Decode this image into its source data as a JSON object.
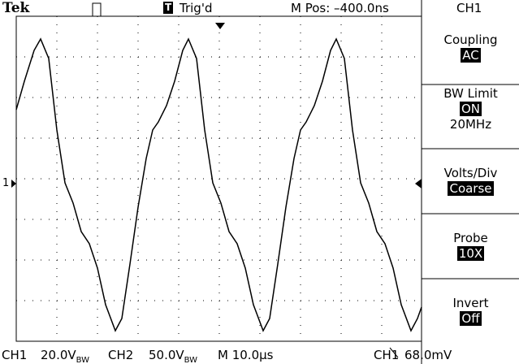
{
  "header": {
    "logo": "Tek",
    "trigger_icon": "T",
    "trigger_status": "Trig'd",
    "position": "M Pos: –400.0ns",
    "channel": "CH1"
  },
  "channel_marker": "1",
  "menu": [
    {
      "label": "Coupling",
      "value": "AC"
    },
    {
      "label": "BW Limit",
      "value": "ON",
      "extra": "20MHz"
    },
    {
      "label": "Volts/Div",
      "value": "Coarse"
    },
    {
      "label": "Probe",
      "value": "10X"
    },
    {
      "label": "Invert",
      "value": "Off"
    }
  ],
  "status_bar": {
    "ch1_label": "CH1",
    "ch1_scale": "20.0V",
    "ch1_bw": "BW",
    "ch2_label": "CH2",
    "ch2_scale": "50.0V",
    "ch2_bw": "BW",
    "timebase": "M 10.0µs",
    "trigger_source": "CH1",
    "trigger_level": "68.0mV"
  }
}
